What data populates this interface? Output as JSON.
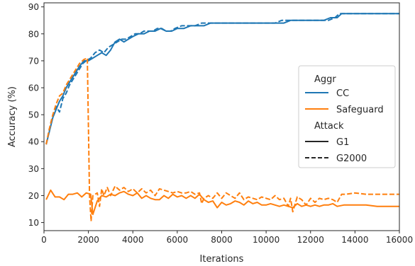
{
  "chart_data": {
    "type": "line",
    "xlabel": "Iterations",
    "ylabel": "Accuracy (%)",
    "xlim": [
      0,
      16000
    ],
    "ylim": [
      7,
      91.5
    ],
    "xticks": [
      0,
      2000,
      4000,
      6000,
      8000,
      10000,
      12000,
      14000,
      16000
    ],
    "yticks": [
      10,
      20,
      30,
      40,
      50,
      60,
      70,
      80,
      90
    ],
    "grid": false,
    "legend_placement": "center-right",
    "legend": {
      "aggr_title": "Aggr",
      "attack_title": "Attack",
      "cc_label": "CC",
      "safeguard_label": "Safeguard",
      "g1_label": "G1",
      "g2000_label": "G2000"
    },
    "colors": {
      "CC": "#1f77b4",
      "Safeguard": "#ff7f0e",
      "axis": "#262626"
    },
    "series": [
      {
        "name": "CC / G1",
        "aggr": "CC",
        "attack": "G1",
        "style": "solid",
        "color": "#1f77b4",
        "points": [
          [
            100,
            39
          ],
          [
            250,
            44
          ],
          [
            400,
            49
          ],
          [
            550,
            52
          ],
          [
            700,
            55
          ],
          [
            850,
            57
          ],
          [
            1000,
            60
          ],
          [
            1150,
            62
          ],
          [
            1300,
            64
          ],
          [
            1450,
            66
          ],
          [
            1600,
            68
          ],
          [
            1800,
            70
          ],
          [
            2000,
            70
          ],
          [
            2200,
            71
          ],
          [
            2400,
            72
          ],
          [
            2600,
            73
          ],
          [
            2800,
            72
          ],
          [
            3000,
            74
          ],
          [
            3200,
            77
          ],
          [
            3400,
            78
          ],
          [
            3600,
            77
          ],
          [
            3800,
            78
          ],
          [
            4000,
            79
          ],
          [
            4250,
            80
          ],
          [
            4500,
            80
          ],
          [
            4750,
            81
          ],
          [
            5000,
            81
          ],
          [
            5250,
            82
          ],
          [
            5500,
            81
          ],
          [
            5750,
            81
          ],
          [
            6000,
            82
          ],
          [
            6300,
            82
          ],
          [
            6600,
            83
          ],
          [
            6900,
            83
          ],
          [
            7200,
            83
          ],
          [
            7500,
            84
          ],
          [
            7800,
            84
          ],
          [
            8100,
            84
          ],
          [
            8400,
            84
          ],
          [
            8700,
            84
          ],
          [
            9000,
            84
          ],
          [
            9300,
            84
          ],
          [
            9600,
            84
          ],
          [
            9900,
            84
          ],
          [
            10200,
            84
          ],
          [
            10500,
            84
          ],
          [
            10800,
            84
          ],
          [
            11100,
            85
          ],
          [
            11400,
            85
          ],
          [
            11700,
            85
          ],
          [
            12000,
            85
          ],
          [
            12300,
            85
          ],
          [
            12600,
            85
          ],
          [
            12900,
            86
          ],
          [
            13200,
            86
          ],
          [
            13400,
            87.5
          ],
          [
            13700,
            87.5
          ],
          [
            14000,
            87.5
          ],
          [
            14500,
            87.5
          ],
          [
            15000,
            87.5
          ],
          [
            15500,
            87.5
          ],
          [
            16000,
            87.5
          ]
        ]
      },
      {
        "name": "CC / G2000",
        "aggr": "CC",
        "attack": "G2000",
        "style": "dashed",
        "color": "#1f77b4",
        "points": [
          [
            100,
            39
          ],
          [
            250,
            45
          ],
          [
            400,
            50
          ],
          [
            550,
            53
          ],
          [
            700,
            51
          ],
          [
            850,
            56
          ],
          [
            1000,
            58
          ],
          [
            1150,
            61
          ],
          [
            1300,
            63
          ],
          [
            1450,
            65
          ],
          [
            1600,
            67
          ],
          [
            1750,
            69
          ],
          [
            1900,
            70
          ],
          [
            2100,
            71
          ],
          [
            2300,
            73
          ],
          [
            2500,
            74
          ],
          [
            2700,
            73
          ],
          [
            2900,
            75
          ],
          [
            3100,
            76
          ],
          [
            3300,
            77
          ],
          [
            3500,
            78
          ],
          [
            3700,
            78
          ],
          [
            3900,
            79
          ],
          [
            4100,
            80
          ],
          [
            4300,
            80
          ],
          [
            4500,
            81
          ],
          [
            4700,
            81
          ],
          [
            4900,
            81
          ],
          [
            5100,
            82
          ],
          [
            5300,
            82
          ],
          [
            5500,
            81
          ],
          [
            5700,
            81
          ],
          [
            5900,
            82
          ],
          [
            6200,
            83
          ],
          [
            6500,
            83
          ],
          [
            6800,
            83
          ],
          [
            7100,
            84
          ],
          [
            7400,
            84
          ],
          [
            7700,
            84
          ],
          [
            8000,
            84
          ],
          [
            8300,
            84
          ],
          [
            8600,
            84
          ],
          [
            8900,
            84
          ],
          [
            9200,
            84
          ],
          [
            9500,
            84
          ],
          [
            9800,
            84
          ],
          [
            10100,
            84
          ],
          [
            10400,
            84
          ],
          [
            10700,
            85
          ],
          [
            11000,
            85
          ],
          [
            11300,
            85
          ],
          [
            11600,
            85
          ],
          [
            11900,
            85
          ],
          [
            12200,
            85
          ],
          [
            12500,
            85
          ],
          [
            12800,
            85
          ],
          [
            13100,
            86
          ],
          [
            13300,
            87.5
          ],
          [
            13600,
            87.5
          ],
          [
            14000,
            87.5
          ],
          [
            14500,
            87.5
          ],
          [
            15000,
            87.5
          ],
          [
            15500,
            87.5
          ],
          [
            16000,
            87.5
          ]
        ]
      },
      {
        "name": "Safeguard / G1",
        "aggr": "Safeguard",
        "attack": "G1",
        "style": "solid",
        "color": "#ff7f0e",
        "points": [
          [
            100,
            18.5
          ],
          [
            300,
            22
          ],
          [
            500,
            19.5
          ],
          [
            700,
            19.5
          ],
          [
            900,
            18.5
          ],
          [
            1100,
            20.5
          ],
          [
            1300,
            20.5
          ],
          [
            1500,
            21
          ],
          [
            1700,
            19.5
          ],
          [
            1900,
            21
          ],
          [
            2100,
            20.5
          ],
          [
            2200,
            13
          ],
          [
            2400,
            18
          ],
          [
            2600,
            20
          ],
          [
            2800,
            19.5
          ],
          [
            3000,
            20.5
          ],
          [
            3200,
            20
          ],
          [
            3400,
            21
          ],
          [
            3600,
            21.5
          ],
          [
            3800,
            20.5
          ],
          [
            4000,
            20
          ],
          [
            4200,
            21
          ],
          [
            4400,
            19
          ],
          [
            4600,
            20
          ],
          [
            4800,
            19
          ],
          [
            5000,
            18.5
          ],
          [
            5200,
            18.5
          ],
          [
            5400,
            20
          ],
          [
            5600,
            19
          ],
          [
            5800,
            20.5
          ],
          [
            6000,
            19.5
          ],
          [
            6200,
            20
          ],
          [
            6400,
            19
          ],
          [
            6600,
            20
          ],
          [
            6800,
            19
          ],
          [
            7000,
            20.5
          ],
          [
            7200,
            18.5
          ],
          [
            7400,
            17.5
          ],
          [
            7600,
            18
          ],
          [
            7800,
            15.5
          ],
          [
            8000,
            17.5
          ],
          [
            8200,
            16.5
          ],
          [
            8400,
            17
          ],
          [
            8600,
            18
          ],
          [
            8800,
            17.5
          ],
          [
            9000,
            16.5
          ],
          [
            9200,
            18
          ],
          [
            9400,
            17
          ],
          [
            9600,
            17.5
          ],
          [
            9800,
            16.5
          ],
          [
            10000,
            16.5
          ],
          [
            10200,
            17
          ],
          [
            10400,
            16.5
          ],
          [
            10600,
            16
          ],
          [
            10800,
            16.5
          ],
          [
            11000,
            16
          ],
          [
            11200,
            15.5
          ],
          [
            11400,
            17
          ],
          [
            11600,
            16
          ],
          [
            11800,
            16.5
          ],
          [
            12000,
            16
          ],
          [
            12200,
            16.5
          ],
          [
            12400,
            16
          ],
          [
            12600,
            16.5
          ],
          [
            12800,
            16.5
          ],
          [
            13000,
            17
          ],
          [
            13200,
            16
          ],
          [
            13500,
            16.5
          ],
          [
            14000,
            16.5
          ],
          [
            14500,
            16.5
          ],
          [
            15000,
            16
          ],
          [
            15500,
            16
          ],
          [
            16000,
            16
          ]
        ]
      },
      {
        "name": "Safeguard / G2000",
        "aggr": "Safeguard",
        "attack": "G2000",
        "style": "dashed",
        "color": "#ff7f0e",
        "points": [
          [
            100,
            39
          ],
          [
            250,
            45
          ],
          [
            400,
            50
          ],
          [
            550,
            54
          ],
          [
            700,
            57
          ],
          [
            850,
            58
          ],
          [
            1000,
            61
          ],
          [
            1150,
            63
          ],
          [
            1300,
            65
          ],
          [
            1450,
            67
          ],
          [
            1600,
            69
          ],
          [
            1800,
            70.5
          ],
          [
            1950,
            71
          ],
          [
            2050,
            20
          ],
          [
            2120,
            10.5
          ],
          [
            2200,
            20
          ],
          [
            2300,
            20.5
          ],
          [
            2400,
            21
          ],
          [
            2500,
            16
          ],
          [
            2600,
            22.5
          ],
          [
            2700,
            20
          ],
          [
            2850,
            23
          ],
          [
            3000,
            20
          ],
          [
            3200,
            23.5
          ],
          [
            3400,
            22
          ],
          [
            3600,
            23
          ],
          [
            3800,
            21.5
          ],
          [
            4000,
            22.5
          ],
          [
            4200,
            21
          ],
          [
            4400,
            22.5
          ],
          [
            4600,
            21
          ],
          [
            4800,
            22
          ],
          [
            5000,
            20
          ],
          [
            5200,
            22.5
          ],
          [
            5400,
            22
          ],
          [
            5600,
            21.5
          ],
          [
            5800,
            21
          ],
          [
            6000,
            21.5
          ],
          [
            6200,
            21
          ],
          [
            6400,
            21
          ],
          [
            6600,
            21.5
          ],
          [
            6800,
            20.5
          ],
          [
            7000,
            21
          ],
          [
            7100,
            17
          ],
          [
            7200,
            19
          ],
          [
            7400,
            20
          ],
          [
            7600,
            19
          ],
          [
            7800,
            21
          ],
          [
            8000,
            19
          ],
          [
            8200,
            21
          ],
          [
            8400,
            20
          ],
          [
            8600,
            19
          ],
          [
            8800,
            21
          ],
          [
            9000,
            18.5
          ],
          [
            9200,
            19.5
          ],
          [
            9400,
            19
          ],
          [
            9600,
            18.5
          ],
          [
            9800,
            19.5
          ],
          [
            10000,
            19
          ],
          [
            10200,
            18.5
          ],
          [
            10400,
            20
          ],
          [
            10600,
            18.5
          ],
          [
            10800,
            19
          ],
          [
            11000,
            16
          ],
          [
            11100,
            19
          ],
          [
            11200,
            14
          ],
          [
            11400,
            19.5
          ],
          [
            11600,
            18.5
          ],
          [
            11800,
            16.5
          ],
          [
            12000,
            19
          ],
          [
            12200,
            17.5
          ],
          [
            12400,
            19
          ],
          [
            12600,
            18.5
          ],
          [
            12800,
            19
          ],
          [
            13000,
            18.5
          ],
          [
            13200,
            17.5
          ],
          [
            13400,
            20.5
          ],
          [
            13600,
            20.5
          ],
          [
            14000,
            21
          ],
          [
            14500,
            20.5
          ],
          [
            15000,
            20.5
          ],
          [
            15500,
            20.5
          ],
          [
            16000,
            20.5
          ]
        ]
      }
    ]
  }
}
